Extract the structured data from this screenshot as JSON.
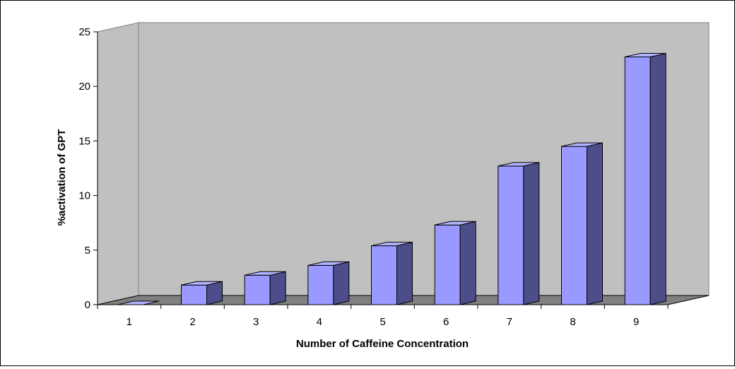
{
  "chart_data": {
    "type": "bar",
    "title": "",
    "xlabel": "Number of Caffeine Concentration",
    "ylabel": "%activation of GPT",
    "categories": [
      "1",
      "2",
      "3",
      "4",
      "5",
      "6",
      "7",
      "8",
      "9"
    ],
    "values": [
      0,
      1.8,
      2.7,
      3.6,
      5.4,
      7.3,
      12.7,
      14.5,
      22.7
    ],
    "ylim": [
      0,
      25
    ],
    "yticks": [
      "0",
      "5",
      "10",
      "15",
      "20",
      "25"
    ],
    "grid": false,
    "legend": "none",
    "style": "3d-column"
  },
  "colors": {
    "wall": "#c0c0c0",
    "floor": "#808080",
    "bar_front": "#9999ff",
    "bar_side": "#4d4d8a",
    "bar_top": "#b3b3ff",
    "outline": "#000000"
  }
}
